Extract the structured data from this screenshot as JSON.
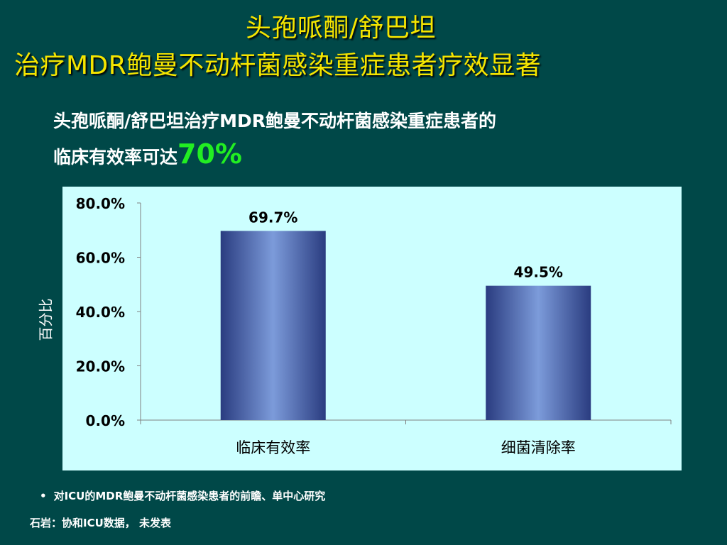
{
  "slide": {
    "title_line1": "头孢哌酮/舒巴坦",
    "title_line2": "治疗MDR鲍曼不动杆菌感染重症患者疗效显著",
    "subtitle_line1": "头孢哌酮/舒巴坦治疗MDR鲍曼不动杆菌感染重症患者的",
    "subtitle_line2_prefix": "临床有效率可达",
    "subtitle_highlight": "70%",
    "footnote_bullet": "•",
    "footnote": "对ICU的MDR鲍曼不动杆菌感染患者的前瞻、单中心研究",
    "source": "石岩：协和ICU数据， 未发表"
  },
  "colors": {
    "background": "#004848",
    "title": "#F5E500",
    "highlight": "#22EE22",
    "panel": "#CCFFFF",
    "bar_dark": "#2A3C80",
    "bar_light": "#7C9BDA"
  },
  "chart_data": {
    "type": "bar",
    "categories": [
      "临床有效率",
      "细菌清除率"
    ],
    "values": [
      69.7,
      49.5
    ],
    "data_labels": [
      "69.7%",
      "49.5%"
    ],
    "ylabel": "百分比",
    "ylim": [
      0,
      80
    ],
    "yticks": [
      0,
      20,
      40,
      60,
      80
    ],
    "ytick_labels": [
      "0.0%",
      "20.0%",
      "40.0%",
      "60.0%",
      "80.0%"
    ],
    "grid": false,
    "legend": "none"
  }
}
